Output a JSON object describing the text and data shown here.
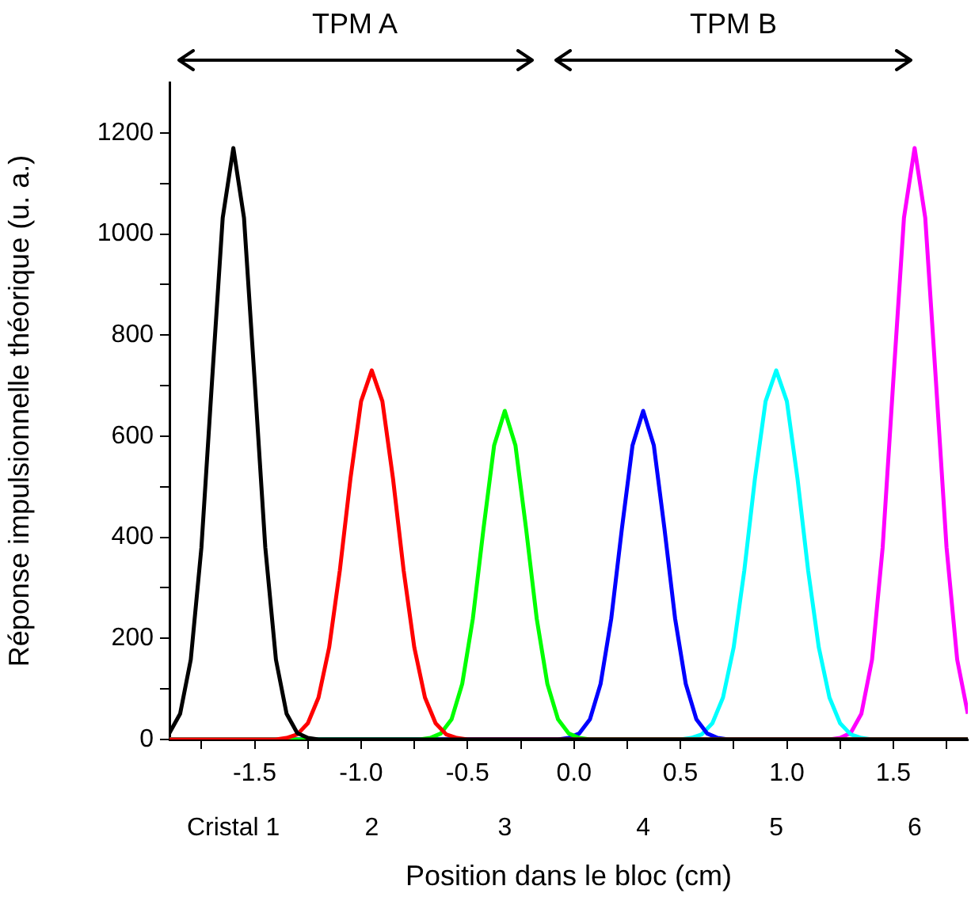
{
  "chart_data": {
    "type": "line",
    "xlabel": "Position dans le bloc (cm)",
    "ylabel": "Réponse impulsionnelle théorique (u. a.)",
    "xlim": [
      -1.9,
      1.85
    ],
    "ylim": [
      0,
      1300
    ],
    "xticks": [
      {
        "value": -1.75,
        "label": null
      },
      -1.5,
      {
        "value": -1.25,
        "label": null
      },
      {
        "value": -1,
        "label": "-1.0"
      },
      {
        "value": -0.75,
        "label": null
      },
      -0.5,
      {
        "value": -0.25,
        "label": null
      },
      {
        "value": 0,
        "label": "0.0"
      },
      {
        "value": 0.25,
        "label": null
      },
      0.5,
      {
        "value": 0.75,
        "label": null
      },
      {
        "value": 1,
        "label": "1.0"
      },
      {
        "value": 1.25,
        "label": null
      },
      1.5,
      {
        "value": 1.75,
        "label": null
      }
    ],
    "yticks": [
      0,
      {
        "value": 100,
        "label": null
      },
      200,
      {
        "value": 300,
        "label": null
      },
      400,
      {
        "value": 500,
        "label": null
      },
      600,
      {
        "value": 700,
        "label": null
      },
      800,
      {
        "value": 900,
        "label": null
      },
      1000,
      {
        "value": 1100,
        "label": null
      },
      1200
    ],
    "grid": false,
    "legend": false,
    "marker": "none",
    "line_style": "solid",
    "series": [
      {
        "color": "#000000",
        "x": [
          -1.9,
          -1.85,
          -1.8,
          -1.75,
          -1.7,
          -1.65,
          -1.6,
          -1.55,
          -1.5,
          -1.45,
          -1.4,
          -1.35,
          -1.3,
          -1.25,
          -1.2,
          1.85
        ],
        "values": [
          13,
          51,
          158,
          380,
          710,
          1032,
          1170,
          1032,
          710,
          380,
          158,
          51,
          13,
          3,
          0,
          0
        ]
      },
      {
        "color": "#ff0000",
        "x": [
          -1.9,
          -1.4,
          -1.35,
          -1.3,
          -1.25,
          -1.2,
          -1.15,
          -1.1,
          -1.05,
          -1.0,
          -0.95,
          -0.9,
          -0.85,
          -0.8,
          -0.75,
          -0.7,
          -0.65,
          -0.6,
          -0.55,
          -0.5,
          1.85
        ],
        "values": [
          0,
          0,
          3,
          10,
          32,
          83,
          182,
          334,
          516,
          669,
          730,
          669,
          516,
          334,
          182,
          83,
          32,
          10,
          3,
          0,
          0
        ]
      },
      {
        "color": "#00ff00",
        "x": [
          -1.9,
          -0.725,
          -0.675,
          -0.625,
          -0.575,
          -0.525,
          -0.475,
          -0.425,
          -0.375,
          -0.325,
          -0.275,
          -0.225,
          -0.175,
          -0.125,
          -0.075,
          -0.025,
          0.025,
          0.075,
          1.85
        ],
        "values": [
          0,
          0,
          3,
          12,
          40,
          110,
          239,
          417,
          582,
          650,
          582,
          417,
          239,
          110,
          40,
          12,
          3,
          0,
          0
        ]
      },
      {
        "color": "#0000ff",
        "x": [
          -1.9,
          -0.075,
          -0.025,
          0.025,
          0.075,
          0.125,
          0.175,
          0.225,
          0.275,
          0.325,
          0.375,
          0.425,
          0.475,
          0.525,
          0.575,
          0.625,
          0.675,
          0.725,
          1.85
        ],
        "values": [
          0,
          0,
          3,
          12,
          40,
          110,
          239,
          417,
          582,
          650,
          582,
          417,
          239,
          110,
          40,
          12,
          3,
          0,
          0
        ]
      },
      {
        "color": "#00ffff",
        "x": [
          -1.9,
          0.5,
          0.55,
          0.6,
          0.65,
          0.7,
          0.75,
          0.8,
          0.85,
          0.9,
          0.95,
          1.0,
          1.05,
          1.1,
          1.15,
          1.2,
          1.25,
          1.3,
          1.35,
          1.4,
          1.85
        ],
        "values": [
          0,
          0,
          3,
          10,
          32,
          83,
          182,
          334,
          516,
          669,
          730,
          669,
          516,
          334,
          182,
          83,
          32,
          10,
          3,
          0,
          0
        ]
      },
      {
        "color": "#ff00ff",
        "x": [
          -1.9,
          1.2,
          1.25,
          1.3,
          1.35,
          1.4,
          1.45,
          1.5,
          1.55,
          1.6,
          1.65,
          1.7,
          1.75,
          1.8,
          1.85
        ],
        "values": [
          0,
          0,
          3,
          13,
          51,
          158,
          380,
          710,
          1032,
          1170,
          1032,
          710,
          380,
          158,
          51
        ]
      }
    ],
    "annotations": [
      "TPM A",
      "TPM B",
      {
        "text": "Cristal 1",
        "x": -1.6,
        "y": 0
      },
      {
        "text": "2",
        "x": -0.95,
        "y": 0
      },
      {
        "text": "3",
        "x": -0.325,
        "y": 0
      },
      {
        "text": "4",
        "x": 0.325,
        "y": 0
      },
      {
        "text": "5",
        "x": 0.95,
        "y": 0
      },
      {
        "text": "6",
        "x": 1.6,
        "y": 0
      }
    ]
  }
}
